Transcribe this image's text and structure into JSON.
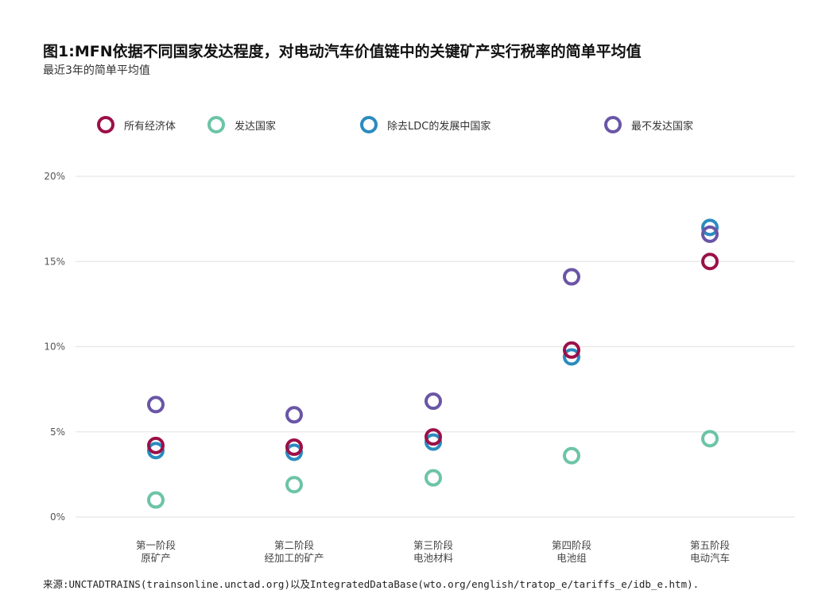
{
  "title": "图1:MFN依据不同国家发达程度，对电动汽车价值链中的关键矿产实行税率的简单平均值",
  "subtitle": "最近3年的简单平均值",
  "source": "来源:UNCTADTRAINS(trainsonline.unctad.org)以及IntegratedDataBase(wto.org/english/tratop_e/tariffs_e/idb_e.htm).",
  "colors": {
    "all": "#9b1048",
    "developed": "#6cc4a6",
    "developing_ex_ldc": "#2a8bbf",
    "ldc": "#6a55a6",
    "grid": "#e6e6e6"
  },
  "chart_data": {
    "type": "scatter",
    "categories": [
      [
        "第一阶段",
        "原矿产"
      ],
      [
        "第二阶段",
        "经加工的矿产"
      ],
      [
        "第三阶段",
        "电池材料"
      ],
      [
        "第四阶段",
        "电池组"
      ],
      [
        "第五阶段",
        "电动汽车"
      ]
    ],
    "y_ticks": [
      "0%",
      "5%",
      "10%",
      "15%",
      "20%"
    ],
    "ylim": [
      0,
      20
    ],
    "grid": true,
    "legend_position": "top",
    "series": [
      {
        "name": "所有经济体",
        "color": "#9b1048",
        "values": [
          4.2,
          4.1,
          4.7,
          9.8,
          15.0
        ]
      },
      {
        "name": "发达国家",
        "color": "#6cc4a6",
        "values": [
          1.0,
          1.9,
          2.3,
          3.6,
          4.6
        ]
      },
      {
        "name": "除去LDC的发展中国家",
        "color": "#2a8bbf",
        "values": [
          3.9,
          3.8,
          4.4,
          9.4,
          17.0
        ]
      },
      {
        "name": "最不发达国家",
        "color": "#6a55a6",
        "values": [
          6.6,
          6.0,
          6.8,
          14.1,
          16.6
        ]
      }
    ]
  }
}
